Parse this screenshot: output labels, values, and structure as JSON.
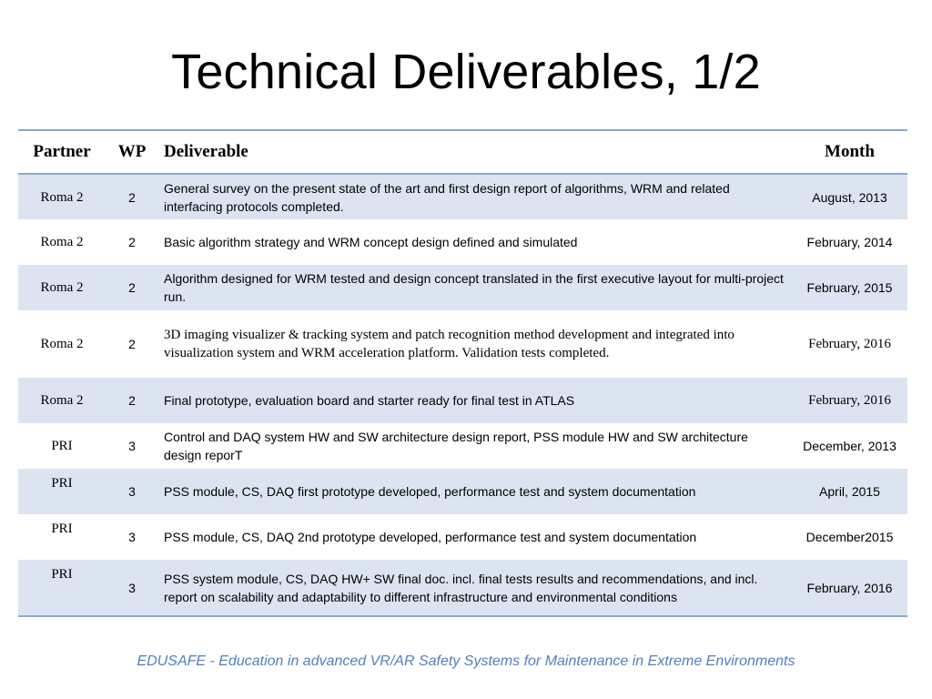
{
  "slide": {
    "title": "Technical Deliverables, 1/2",
    "footer": "EDUSAFE - Education in advanced VR/AR Safety Systems  for Maintenance in Extreme Environments"
  },
  "table": {
    "headers": {
      "partner": "Partner",
      "wp": "WP",
      "deliverable": "Deliverable",
      "month": "Month"
    },
    "rows": [
      {
        "partner": "Roma 2",
        "wp": "2",
        "deliverable": "General survey on the present state of the art and first design report of algorithms, WRM and related interfacing protocols completed.",
        "month": "August, 2013"
      },
      {
        "partner": "Roma 2",
        "wp": "2",
        "deliverable": "Basic algorithm strategy and WRM concept design defined and simulated",
        "month": "February, 2014"
      },
      {
        "partner": "Roma 2",
        "wp": "2",
        "deliverable": "Algorithm designed for WRM tested and design concept translated in the first executive layout for multi-project run.",
        "month": "February, 2015"
      },
      {
        "partner": "Roma 2",
        "wp": "2",
        "deliverable": "3D imaging visualizer & tracking system and patch recognition method development and integrated into visualization system and WRM acceleration platform. Validation tests completed.",
        "month": "February, 2016"
      },
      {
        "partner": "Roma 2",
        "wp": "2",
        "deliverable": "Final prototype, evaluation board and starter ready for final test in ATLAS",
        "month": "February, 2016"
      },
      {
        "partner": "PRI",
        "wp": "3",
        "deliverable": "Control and DAQ system HW and SW architecture design report, PSS module HW and SW architecture design reporT",
        "month": "December, 2013"
      },
      {
        "partner": "PRI",
        "wp": "3",
        "deliverable": "PSS module, CS, DAQ first prototype developed, performance test and system documentation",
        "month": "April, 2015"
      },
      {
        "partner": "PRI",
        "wp": "3",
        "deliverable": "PSS module, CS, DAQ 2nd prototype developed, performance test and system documentation",
        "month": "December2015"
      },
      {
        "partner": "PRI",
        "wp": "3",
        "deliverable": "PSS system module, CS, DAQ HW+ SW final doc. incl. final tests results and recommendations, and incl. report on scalability and adaptability to different infrastructure and environmental conditions",
        "month": "February, 2016"
      }
    ]
  },
  "colors": {
    "rule": "#8aa7d1",
    "row_shade": "#dbe4f0",
    "footer_text": "#4f81bd"
  }
}
